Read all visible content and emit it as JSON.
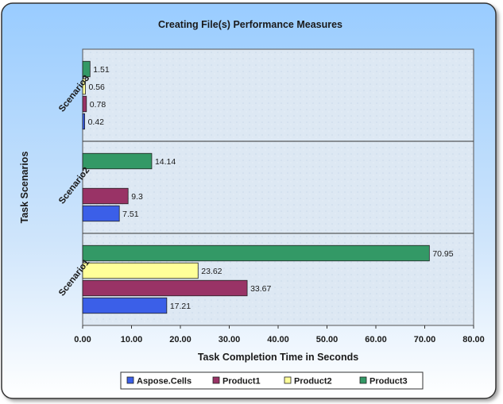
{
  "chart_data": {
    "type": "bar",
    "orientation": "horizontal",
    "title": "Creating File(s) Performance Measures",
    "xlabel": "Task Completion Time in Seconds",
    "ylabel": "Task Scenarios",
    "xlim": [
      0,
      80
    ],
    "x_ticks": [
      "0.00",
      "10.00",
      "20.00",
      "30.00",
      "40.00",
      "50.00",
      "60.00",
      "70.00",
      "80.00"
    ],
    "categories": [
      "Scenario1",
      "Scenario2",
      "Scenario3"
    ],
    "series": [
      {
        "name": "Aspose.Cells",
        "color": "#3b5fe8",
        "values": [
          17.21,
          7.51,
          0.42
        ]
      },
      {
        "name": "Product1",
        "color": "#993366",
        "values": [
          33.67,
          9.3,
          0.78
        ]
      },
      {
        "name": "Product2",
        "color": "#ffff99",
        "values": [
          23.62,
          null,
          0.56
        ]
      },
      {
        "name": "Product3",
        "color": "#339966",
        "values": [
          70.95,
          14.14,
          1.51
        ]
      }
    ],
    "data_labels": [
      [
        "17.21",
        "7.51",
        "0.42"
      ],
      [
        "33.67",
        "9.3",
        "0.78"
      ],
      [
        "23.62",
        "",
        "0.56"
      ],
      [
        "70.95",
        "14.14",
        "1.51"
      ]
    ],
    "legend_position": "bottom",
    "grid": false,
    "colors": {
      "plot_background": "#d9e6f2",
      "frame_background": "#99ccff"
    }
  }
}
